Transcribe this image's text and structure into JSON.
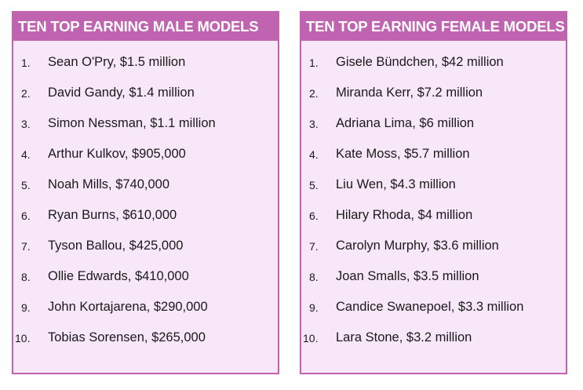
{
  "male": {
    "title": "TEN TOP EARNING MALE MODELS",
    "items": [
      {
        "num": "1.",
        "text": "Sean O'Pry, $1.5 million"
      },
      {
        "num": "2.",
        "text": "David Gandy, $1.4 million"
      },
      {
        "num": "3.",
        "text": "Simon Nessman, $1.1 million"
      },
      {
        "num": "4.",
        "text": "Arthur Kulkov, $905,000"
      },
      {
        "num": "5.",
        "text": "Noah Mills, $740,000"
      },
      {
        "num": "6.",
        "text": "Ryan Burns, $610,000"
      },
      {
        "num": "7.",
        "text": "Tyson Ballou, $425,000"
      },
      {
        "num": "8.",
        "text": "Ollie Edwards, $410,000"
      },
      {
        "num": "9.",
        "text": "John Kortajarena, $290,000"
      },
      {
        "num": "10.",
        "text": "Tobias Sorensen, $265,000"
      }
    ]
  },
  "female": {
    "title": "TEN TOP EARNING FEMALE MODELS",
    "items": [
      {
        "num": "1.",
        "text": "Gisele Bündchen, $42 million"
      },
      {
        "num": "2.",
        "text": "Miranda Kerr, $7.2 million"
      },
      {
        "num": "3.",
        "text": "Adriana Lima, $6 million"
      },
      {
        "num": "4.",
        "text": "Kate Moss, $5.7 million"
      },
      {
        "num": "5.",
        "text": "Liu Wen, $4.3 million"
      },
      {
        "num": "6.",
        "text": "Hilary Rhoda, $4 million"
      },
      {
        "num": "7.",
        "text": "Carolyn Murphy, $3.6 million"
      },
      {
        "num": "8.",
        "text": "Joan Smalls, $3.5 million"
      },
      {
        "num": "9.",
        "text": "Candice Swanepoel, $3.3 million"
      },
      {
        "num": "10.",
        "text": "Lara Stone, $3.2 million"
      }
    ]
  },
  "colors": {
    "header_bg": "#c063b0",
    "panel_bg": "#f7e7f8",
    "text": "#1a1a1a"
  }
}
